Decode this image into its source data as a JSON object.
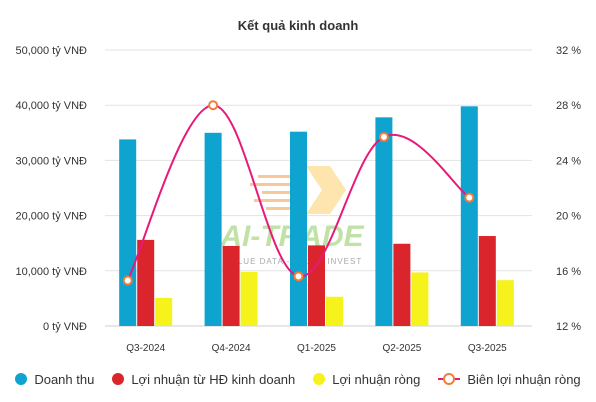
{
  "chart_data": {
    "type": "bar",
    "title": "Kết quả kinh doanh",
    "categories": [
      "Q3-2024",
      "Q4-2024",
      "Q1-2025",
      "Q2-2025",
      "Q3-2025"
    ],
    "series": [
      {
        "name": "Doanh thu",
        "type": "bar",
        "axis": "left",
        "color": "#0fa3cf",
        "values": [
          33800,
          35000,
          35200,
          37800,
          39800
        ]
      },
      {
        "name": "Lợi nhuận từ HĐ kinh doanh",
        "type": "bar",
        "axis": "left",
        "color": "#d9252b",
        "values": [
          15600,
          14500,
          14600,
          14900,
          16300
        ]
      },
      {
        "name": "Lợi nhuận ròng",
        "type": "bar",
        "axis": "left",
        "color": "#f5f21c",
        "values": [
          5100,
          9800,
          5300,
          9700,
          8300
        ]
      },
      {
        "name": "Biên lợi nhuận ròng",
        "type": "line",
        "axis": "right",
        "color": "#e8197a",
        "marker_color": "#f07d3c",
        "values": [
          15.3,
          28.0,
          15.6,
          25.7,
          21.3
        ]
      }
    ],
    "y_left": {
      "ylim": [
        0,
        50000
      ],
      "ticks": [
        "0 tỷ VNĐ",
        "10,000 tỷ VNĐ",
        "20,000 tỷ VNĐ",
        "30,000 tỷ VNĐ",
        "40,000 tỷ VNĐ",
        "50,000 tỷ VNĐ"
      ]
    },
    "y_right": {
      "ylim": [
        12,
        32
      ],
      "ticks": [
        "12 %",
        "16 %",
        "20 %",
        "24 %",
        "28 %",
        "32 %"
      ]
    },
    "grid": true,
    "legend_position": "bottom"
  },
  "watermark": {
    "text": "AI-TRADE",
    "tagline": "VALUE DATA - VALUE INVEST"
  }
}
